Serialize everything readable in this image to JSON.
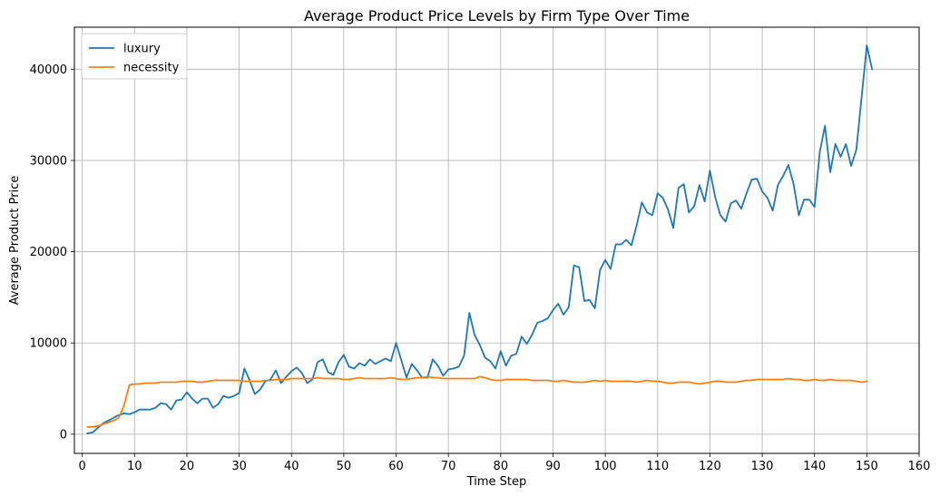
{
  "chart_data": {
    "type": "line",
    "title": "Average Product Price Levels by Firm Type Over Time",
    "xlabel": "Time Step",
    "ylabel": "Average Product Price",
    "xlim": [
      -1.5,
      160
    ],
    "ylim": [
      -2100,
      44600
    ],
    "xticks": [
      0,
      10,
      20,
      30,
      40,
      50,
      60,
      70,
      80,
      90,
      100,
      110,
      120,
      130,
      140,
      150,
      160
    ],
    "yticks": [
      0,
      10000,
      20000,
      30000,
      40000
    ],
    "grid": true,
    "legend_position": "upper-left",
    "x_start": 1,
    "series": [
      {
        "name": "luxury",
        "color": "#1f77b4",
        "values": [
          100,
          200,
          700,
          1200,
          1500,
          1800,
          2100,
          2300,
          2200,
          2400,
          2700,
          2700,
          2700,
          2900,
          3400,
          3300,
          2700,
          3700,
          3800,
          4600,
          3900,
          3400,
          3900,
          3900,
          2900,
          3300,
          4200,
          4000,
          4200,
          4500,
          7200,
          5900,
          4400,
          4900,
          5800,
          6000,
          7000,
          5600,
          6300,
          6900,
          7300,
          6700,
          5600,
          6000,
          7900,
          8200,
          6800,
          6500,
          7900,
          8700,
          7400,
          7200,
          7800,
          7500,
          8200,
          7700,
          8000,
          8300,
          8000,
          10000,
          8100,
          6200,
          7700,
          7000,
          6200,
          6200,
          8200,
          7500,
          6400,
          7100,
          7200,
          7400,
          8600,
          13300,
          10900,
          9800,
          8400,
          8000,
          7200,
          9100,
          7500,
          8600,
          8800,
          10700,
          9900,
          10900,
          12200,
          12400,
          12700,
          13600,
          14300,
          13100,
          13900,
          18500,
          18300,
          14600,
          14700,
          13800,
          18000,
          19100,
          18100,
          20800,
          20800,
          21300,
          20700,
          22900,
          25400,
          24300,
          24000,
          26400,
          25900,
          24600,
          22600,
          27000,
          27400,
          24300,
          25000,
          27300,
          25500,
          28900,
          26000,
          24000,
          23300,
          25300,
          25600,
          24700,
          26400,
          27900,
          28000,
          26600,
          25900,
          24500,
          27300,
          28300,
          29500,
          27400,
          24000,
          25700,
          25700,
          24900,
          30900,
          33800,
          28700,
          31800,
          30400,
          31800,
          29400,
          31200,
          36900,
          42600,
          40000
        ]
      },
      {
        "name": "necessity",
        "color": "#ff7f0e",
        "values": [
          800,
          800,
          900,
          1100,
          1300,
          1500,
          1800,
          3200,
          5400,
          5500,
          5500,
          5600,
          5600,
          5600,
          5700,
          5700,
          5700,
          5700,
          5800,
          5800,
          5800,
          5700,
          5700,
          5800,
          5900,
          5900,
          5900,
          5900,
          5900,
          5900,
          5800,
          5800,
          5800,
          5800,
          5900,
          5900,
          6000,
          6000,
          6000,
          6100,
          6100,
          6100,
          6100,
          6100,
          6200,
          6100,
          6100,
          6100,
          6100,
          6000,
          6000,
          6100,
          6200,
          6100,
          6100,
          6100,
          6100,
          6100,
          6200,
          6100,
          6000,
          6000,
          6100,
          6200,
          6200,
          6300,
          6200,
          6200,
          6100,
          6100,
          6100,
          6100,
          6100,
          6100,
          6100,
          6300,
          6200,
          6000,
          5900,
          5900,
          6000,
          6000,
          6000,
          6000,
          6000,
          5900,
          5900,
          5900,
          5900,
          5800,
          5800,
          5900,
          5800,
          5700,
          5700,
          5700,
          5800,
          5900,
          5800,
          5900,
          5800,
          5800,
          5800,
          5800,
          5800,
          5700,
          5800,
          5900,
          5800,
          5800,
          5700,
          5600,
          5600,
          5700,
          5700,
          5700,
          5600,
          5500,
          5600,
          5700,
          5800,
          5800,
          5700,
          5700,
          5700,
          5800,
          5900,
          5900,
          6000,
          6000,
          6000,
          6000,
          6000,
          6000,
          6100,
          6000,
          6000,
          5900,
          5900,
          6000,
          5900,
          5900,
          6000,
          5900,
          5900,
          5900,
          5900,
          5800,
          5700,
          5800
        ]
      }
    ]
  }
}
